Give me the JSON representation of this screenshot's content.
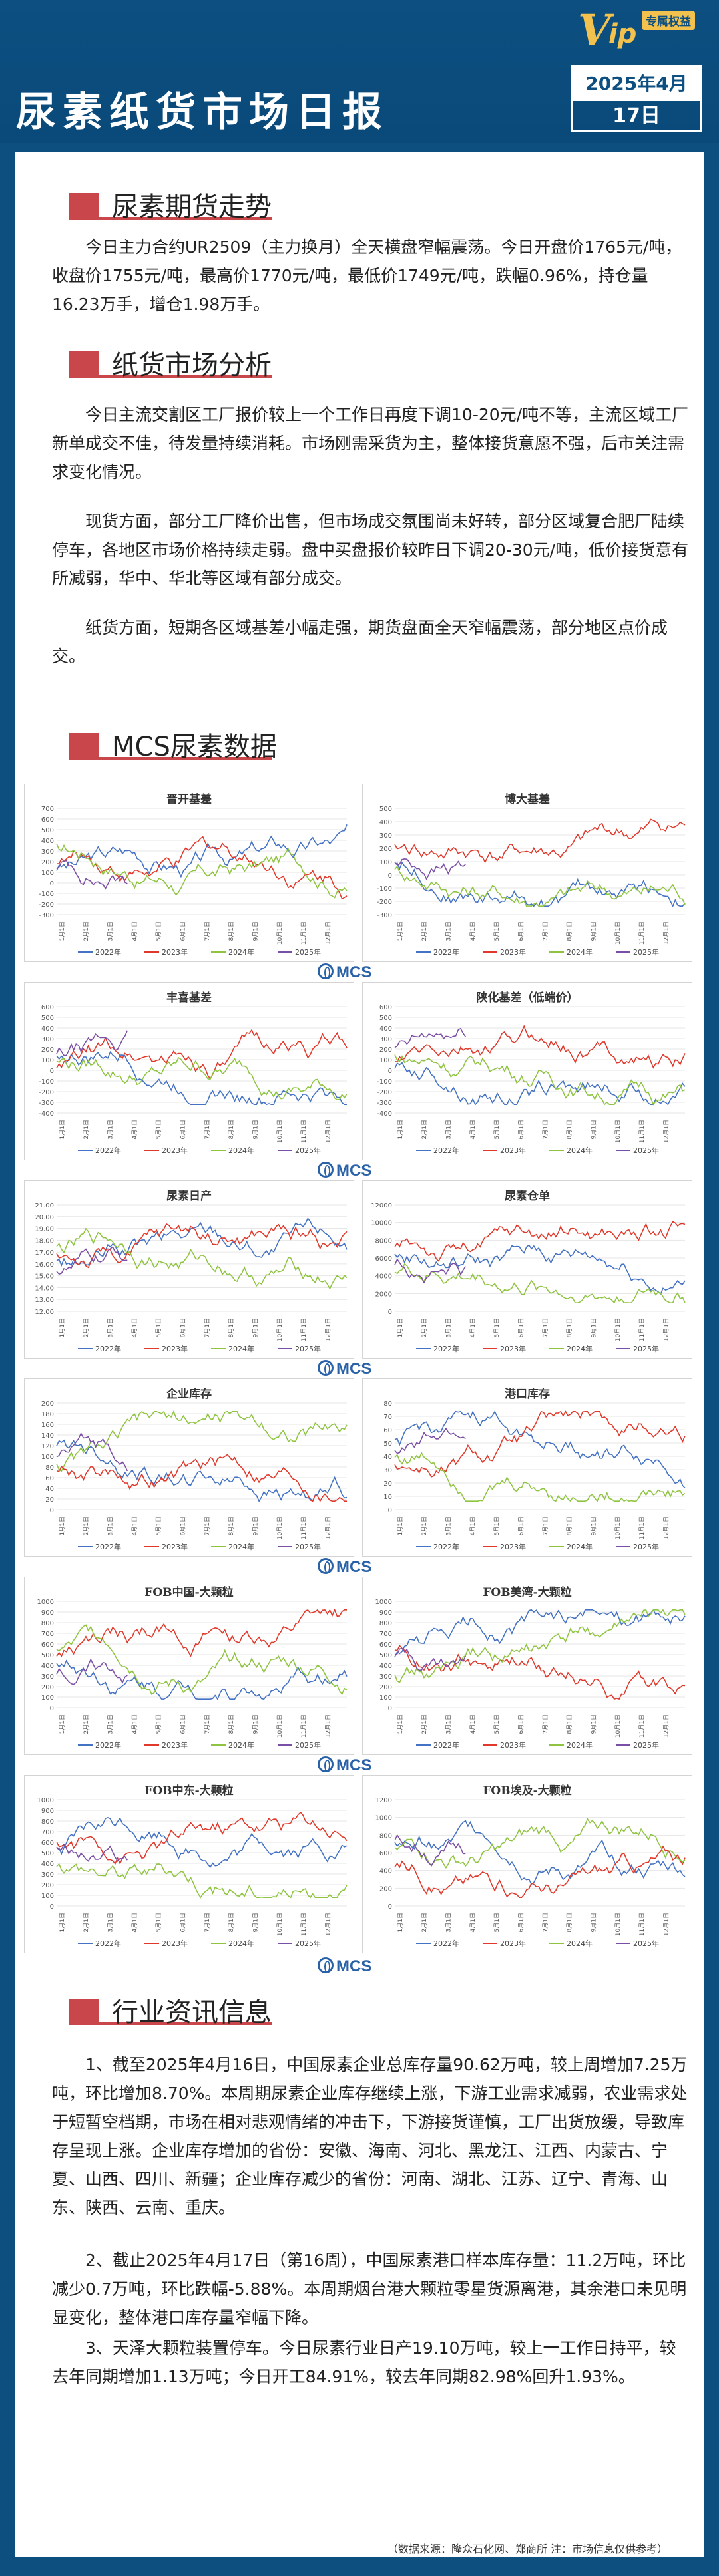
{
  "header": {
    "title": "尿素纸货市场日报",
    "date_ym": "2025年4月",
    "date_d": "17日",
    "vip_v": "V",
    "vip_ip": "ip",
    "vip_tag": "专属权益"
  },
  "sections": {
    "futures": {
      "title": "尿素期货走势",
      "text": "今日主力合约UR2509（主力换月）全天横盘窄幅震荡。今日开盘价1765元/吨，收盘价1755元/吨，最高价1770元/吨，最低价1749元/吨，跌幅0.96%，持仓量16.23万手，增仓1.98万手。"
    },
    "paper": {
      "title": "纸货市场分析",
      "p1": "今日主流交割区工厂报价较上一个工作日再度下调10-20元/吨不等，主流区域工厂新单成交不佳，待发量持续消耗。市场刚需采货为主，整体接货意愿不强，后市关注需求变化情况。",
      "p2": "现货方面，部分工厂降价出售，但市场成交氛围尚未好转，部分区域复合肥厂陆续停车，各地区市场价格持续走弱。盘中买盘报价较昨日下调20-30元/吨，低价接货意有所减弱，华中、华北等区域有部分成交。",
      "p3": "纸货方面，短期各区域基差小幅走强，期货盘面全天窄幅震荡，部分地区点价成交。"
    },
    "mcs": {
      "title": "MCS尿素数据",
      "brand": "MCS"
    },
    "news": {
      "title": "行业资讯信息",
      "n1": "1、截至2025年4月16日，中国尿素企业总库存量90.62万吨，较上周增加7.25万吨，环比增加8.70%。本周期尿素企业库存继续上涨，下游工业需求减弱，农业需求处于短暂空档期，市场在相对悲观情绪的冲击下，下游接货谨慎，工厂出货放缓，导致库存呈现上涨。企业库存增加的省份：安徽、海南、河北、黑龙江、江西、内蒙古、宁夏、山西、四川、新疆；企业库存减少的省份：河南、湖北、江苏、辽宁、青海、山东、陕西、云南、重庆。",
      "n2": "2、截止2025年4月17日（第16周），中国尿素港口样本库存量：11.2万吨，环比减少0.7万吨，环比跌幅-5.88%。本周期烟台港大颗粒零星货源离港，其余港口未见明显变化，整体港口库存量窄幅下降。",
      "n3": "3、天泽大颗粒装置停车。今日尿素行业日产19.10万吨，较上一工作日持平，较去年同期增加1.13万吨；今日开工84.91%，较去年同期82.98%回升1.93%。",
      "source": "（数据来源：隆众石化网、郑商所  注：市场信息仅供参考）"
    }
  },
  "legend": [
    "2022年",
    "2023年",
    "2024年",
    "2025年"
  ],
  "colors": {
    "y2022": "#4472c4",
    "y2023": "#e0392b",
    "y2024": "#8fc440",
    "y2025": "#7b4fa6",
    "accent": "#c9464b",
    "navy": "#0c4f80"
  },
  "charts": [
    {
      "title": "晋开基差",
      "yticks": [
        "700",
        "600",
        "500",
        "400",
        "300",
        "200",
        "100",
        "0",
        "-100",
        "-200",
        "-300"
      ],
      "xticks": [
        "1月1日",
        "2月1日",
        "3月1日",
        "4月1日",
        "5月1日",
        "6月1日",
        "7月1日",
        "8月1日",
        "9月1日",
        "10月1日",
        "11月1日",
        "12月1日"
      ]
    },
    {
      "title": "博大基差",
      "yticks": [
        "500",
        "400",
        "300",
        "200",
        "100",
        "0",
        "-100",
        "-200",
        "-300"
      ],
      "xticks": [
        "1月1日",
        "2月1日",
        "3月1日",
        "4月1日",
        "5月1日",
        "6月1日",
        "7月1日",
        "8月1日",
        "9月1日",
        "10月1日",
        "11月1日",
        "12月1日"
      ]
    },
    {
      "title": "丰喜基差",
      "yticks": [
        "600",
        "500",
        "400",
        "300",
        "200",
        "100",
        "0",
        "-100",
        "-200",
        "-300",
        "-400"
      ],
      "xticks": [
        "1月1日",
        "2月1日",
        "3月1日",
        "4月1日",
        "5月1日",
        "6月1日",
        "7月1日",
        "8月1日",
        "9月1日",
        "10月1日",
        "11月1日",
        "12月1日"
      ]
    },
    {
      "title": "陕化基差（低端价）",
      "yticks": [
        "600",
        "500",
        "400",
        "300",
        "200",
        "100",
        "0",
        "-100",
        "-200",
        "-300",
        "-400"
      ],
      "xticks": [
        "1月1日",
        "2月1日",
        "3月1日",
        "4月1日",
        "5月1日",
        "6月1日",
        "7月1日",
        "8月1日",
        "9月1日",
        "10月1日",
        "11月1日",
        "12月1日"
      ]
    },
    {
      "title": "尿素日产",
      "yticks": [
        "21.00",
        "20.00",
        "19.00",
        "18.00",
        "17.00",
        "16.00",
        "15.00",
        "14.00",
        "13.00",
        "12.00"
      ],
      "xticks": [
        "1月1日",
        "2月1日",
        "3月1日",
        "4月1日",
        "5月1日",
        "6月1日",
        "7月1日",
        "8月1日",
        "9月1日",
        "10月1日",
        "11月1日",
        "12月1日"
      ]
    },
    {
      "title": "尿素仓单",
      "yticks": [
        "12000",
        "10000",
        "8000",
        "6000",
        "4000",
        "2000",
        "0"
      ],
      "xticks": [
        "1月1日",
        "2月1日",
        "3月1日",
        "4月1日",
        "5月1日",
        "6月1日",
        "7月1日",
        "8月1日",
        "9月1日",
        "10月1日",
        "11月1日",
        "12月1日"
      ]
    },
    {
      "title": "企业库存",
      "yticks": [
        "200",
        "180",
        "160",
        "140",
        "120",
        "100",
        "80",
        "60",
        "40",
        "20",
        "0"
      ],
      "xticks": [
        "1月1日",
        "2月1日",
        "3月1日",
        "4月1日",
        "5月1日",
        "6月1日",
        "7月1日",
        "8月1日",
        "9月1日",
        "10月1日",
        "11月1日",
        "12月1日"
      ]
    },
    {
      "title": "港口库存",
      "yticks": [
        "80",
        "70",
        "60",
        "50",
        "40",
        "30",
        "20",
        "10",
        "0"
      ],
      "xticks": [
        "1月1日",
        "2月1日",
        "3月1日",
        "4月1日",
        "5月1日",
        "6月1日",
        "7月1日",
        "8月1日",
        "9月1日",
        "10月1日",
        "11月1日",
        "12月1日"
      ]
    },
    {
      "title": "FOB中国-大颗粒",
      "yticks": [
        "1000",
        "900",
        "800",
        "700",
        "600",
        "500",
        "400",
        "300",
        "200",
        "100",
        "0"
      ],
      "xticks": [
        "1月1日",
        "2月1日",
        "3月1日",
        "4月1日",
        "5月1日",
        "6月1日",
        "7月1日",
        "8月1日",
        "9月1日",
        "10月1日",
        "11月1日",
        "12月1日"
      ]
    },
    {
      "title": "FOB美湾-大颗粒",
      "yticks": [
        "1000",
        "900",
        "800",
        "700",
        "600",
        "500",
        "400",
        "300",
        "200",
        "100",
        "0"
      ],
      "xticks": [
        "1月1日",
        "2月1日",
        "3月1日",
        "4月1日",
        "5月1日",
        "6月1日",
        "7月1日",
        "8月1日",
        "9月1日",
        "10月1日",
        "11月1日",
        "12月1日"
      ]
    },
    {
      "title": "FOB中东-大颗粒",
      "yticks": [
        "1000",
        "900",
        "800",
        "700",
        "600",
        "500",
        "400",
        "300",
        "200",
        "100",
        "0"
      ],
      "xticks": [
        "1月1日",
        "2月1日",
        "3月1日",
        "4月1日",
        "5月1日",
        "6月1日",
        "7月1日",
        "8月1日",
        "9月1日",
        "10月1日",
        "11月1日",
        "12月1日"
      ]
    },
    {
      "title": "FOB埃及-大颗粒",
      "yticks": [
        "1200",
        "1000",
        "800",
        "600",
        "400",
        "200",
        "0"
      ],
      "xticks": [
        "1月1日",
        "2月1日",
        "3月1日",
        "4月1日",
        "5月1日",
        "6月1日",
        "7月1日",
        "8月1日",
        "9月1日",
        "10月1日",
        "11月1日",
        "12月1日"
      ]
    }
  ]
}
